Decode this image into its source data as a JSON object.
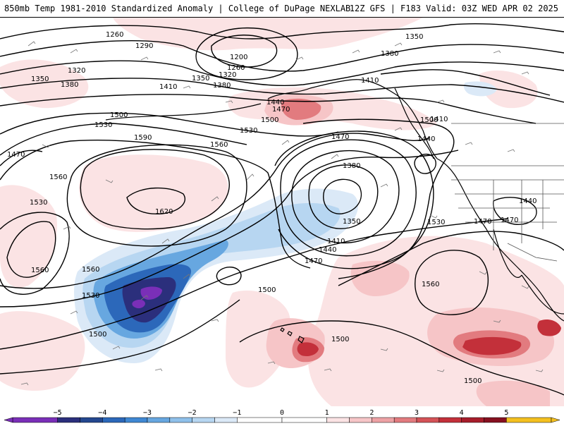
{
  "header": {
    "title": "850mb Temp 1981-2010 Standardized Anomaly | College of DuPage NEXLAB",
    "valid": "12Z GFS | F183 Valid: 03Z WED APR 02 2025"
  },
  "colorbar": {
    "ticks": [
      {
        "value": -5,
        "label": "−5"
      },
      {
        "value": -4,
        "label": "−4"
      },
      {
        "value": -3,
        "label": "−3"
      },
      {
        "value": -2,
        "label": "−2"
      },
      {
        "value": -1,
        "label": "−1"
      },
      {
        "value": 0,
        "label": "0"
      },
      {
        "value": 1,
        "label": "1"
      },
      {
        "value": 2,
        "label": "2"
      },
      {
        "value": 3,
        "label": "3"
      },
      {
        "value": 4,
        "label": "4"
      },
      {
        "value": 5,
        "label": "5"
      }
    ],
    "range": [
      -6,
      6
    ],
    "bins": [
      {
        "from": -6,
        "to": -5,
        "color": "#7a2fb8"
      },
      {
        "from": -5,
        "to": -4.5,
        "color": "#2b2f7c"
      },
      {
        "from": -4.5,
        "to": -4,
        "color": "#24478f"
      },
      {
        "from": -4,
        "to": -3.5,
        "color": "#2c68ba"
      },
      {
        "from": -3.5,
        "to": -3,
        "color": "#3f88d3"
      },
      {
        "from": -3,
        "to": -2.5,
        "color": "#67a7e0"
      },
      {
        "from": -2.5,
        "to": -2,
        "color": "#8fc0ea"
      },
      {
        "from": -2,
        "to": -1.5,
        "color": "#b7d6f1"
      },
      {
        "from": -1.5,
        "to": -1,
        "color": "#dbe9f7"
      },
      {
        "from": -1,
        "to": 0,
        "color": "#ffffff"
      },
      {
        "from": 0,
        "to": 1,
        "color": "#ffffff"
      },
      {
        "from": 1,
        "to": 1.5,
        "color": "#fbe3e4"
      },
      {
        "from": 1.5,
        "to": 2,
        "color": "#f6c5c7"
      },
      {
        "from": 2,
        "to": 2.5,
        "color": "#eda2a5"
      },
      {
        "from": 2.5,
        "to": 3,
        "color": "#e27b7f"
      },
      {
        "from": 3,
        "to": 3.5,
        "color": "#d45257"
      },
      {
        "from": 3.5,
        "to": 4,
        "color": "#c3303a"
      },
      {
        "from": 4,
        "to": 4.5,
        "color": "#a71d2b"
      },
      {
        "from": 4.5,
        "to": 5,
        "color": "#861020"
      },
      {
        "from": 5,
        "to": 6,
        "color": "#f4c020"
      }
    ]
  },
  "height_labels": [
    "1260",
    "1290",
    "1200",
    "1260",
    "1320",
    "1350",
    "1320",
    "1350",
    "1380",
    "1410",
    "1380",
    "1350",
    "1380",
    "1410",
    "1440",
    "1470",
    "1500",
    "1530",
    "1500",
    "1560",
    "1590",
    "1620",
    "1530",
    "1560",
    "1470",
    "1440",
    "1410",
    "1470",
    "1500",
    "1470",
    "1560",
    "1380",
    "1350",
    "1410",
    "1440",
    "1470",
    "1530",
    "1500",
    "1560",
    "1530",
    "1500",
    "1500",
    "1500",
    "1440",
    "1470"
  ],
  "colors": {
    "contour": "#000000",
    "coast": "#000000",
    "border": "#555555"
  }
}
